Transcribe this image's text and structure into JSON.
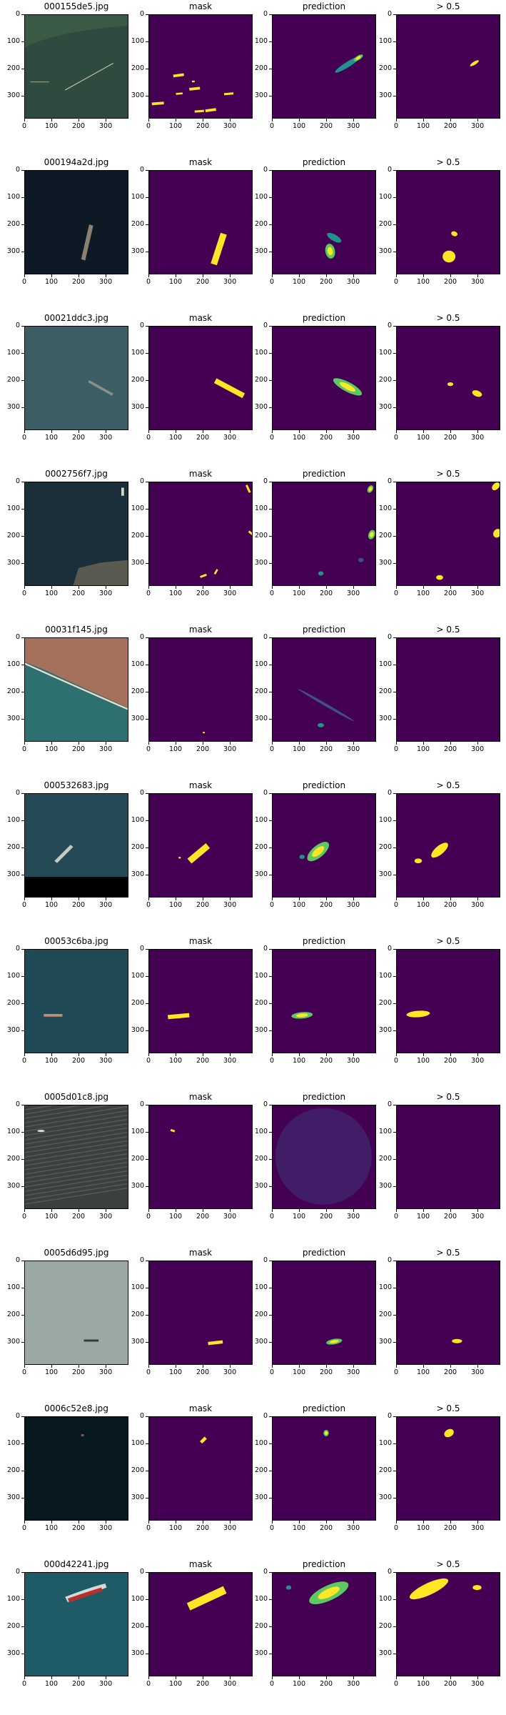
{
  "figure": {
    "column_titles": [
      "mask",
      "prediction",
      "> 0.5"
    ],
    "x_ticks": [
      "0",
      "100",
      "200",
      "300"
    ],
    "y_ticks": [
      "0",
      "100",
      "200",
      "300"
    ],
    "axis_range": [
      0,
      384
    ],
    "colors": {
      "mask_bg": "#440154",
      "mask_fg": "#fde725",
      "pred_mid": "#21918c",
      "pred_low": "#3b528b",
      "pred_high": "#5ec962"
    }
  },
  "rows": [
    {
      "image_title": "000155de5.jpg",
      "image_style": "aerial-coast-green"
    },
    {
      "image_title": "000194a2d.jpg",
      "image_style": "dark-sea-ship"
    },
    {
      "image_title": "00021ddc3.jpg",
      "image_style": "teal-sea-ship"
    },
    {
      "image_title": "0002756f7.jpg",
      "image_style": "dark-sea-port"
    },
    {
      "image_title": "00031f145.jpg",
      "image_style": "town-coast"
    },
    {
      "image_title": "000532683.jpg",
      "image_style": "sea-ship-black-band"
    },
    {
      "image_title": "00053c6ba.jpg",
      "image_style": "teal-sea-small-ship"
    },
    {
      "image_title": "0005d01c8.jpg",
      "image_style": "grey-waves"
    },
    {
      "image_title": "0005d6d95.jpg",
      "image_style": "pale-sea"
    },
    {
      "image_title": "0006c52e8.jpg",
      "image_style": "black-sea"
    },
    {
      "image_title": "000d42241.jpg",
      "image_style": "teal-sea-red-ship"
    }
  ]
}
